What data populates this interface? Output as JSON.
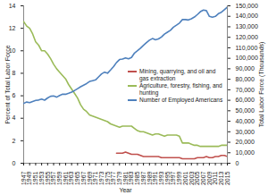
{
  "chart_data": {
    "type": "line",
    "x_label": "Year",
    "y_label": "Percent of Total Labor Force",
    "y2_label": "Total Labor Force (Thousands)",
    "x": [
      1947,
      1948,
      1949,
      1950,
      1951,
      1952,
      1953,
      1954,
      1955,
      1956,
      1957,
      1958,
      1959,
      1960,
      1961,
      1962,
      1963,
      1964,
      1965,
      1966,
      1967,
      1968,
      1969,
      1970,
      1971,
      1972,
      1973,
      1974,
      1975,
      1976,
      1977,
      1978,
      1979,
      1980,
      1981,
      1982,
      1983,
      1984,
      1985,
      1986,
      1987,
      1988,
      1989,
      1990,
      1991,
      1992,
      1993,
      1994,
      1995,
      1996,
      1997,
      1998,
      1999,
      2000,
      2001,
      2002,
      2003,
      2004,
      2005,
      2006,
      2007,
      2008,
      2009,
      2010,
      2011,
      2012,
      2013,
      2014,
      2015
    ],
    "xlim": [
      1947,
      2015
    ],
    "xticks": [
      1947,
      1949,
      1951,
      1953,
      1955,
      1957,
      1959,
      1961,
      1963,
      1965,
      1967,
      1969,
      1971,
      1973,
      1975,
      1977,
      1979,
      1981,
      1983,
      1985,
      1987,
      1989,
      1991,
      1993,
      1995,
      1997,
      1999,
      2001,
      2003,
      2005,
      2007,
      2009,
      2011,
      2013,
      2015
    ],
    "ylim": [
      0,
      14
    ],
    "yticks": [
      0,
      2,
      4,
      6,
      8,
      10,
      12,
      14
    ],
    "y2lim": [
      0,
      150000
    ],
    "y2ticks": [
      0,
      {
        "value": 10000,
        "label": "10,000"
      },
      {
        "value": 20000,
        "label": "20,000"
      },
      {
        "value": 30000,
        "label": "30,000"
      },
      {
        "value": 40000,
        "label": "40,000"
      },
      {
        "value": 50000,
        "label": "50,000"
      },
      {
        "value": 60000,
        "label": "60,000"
      },
      {
        "value": 70000,
        "label": "70,000"
      },
      {
        "value": 80000,
        "label": "80,000"
      },
      {
        "value": 90000,
        "label": "90,000"
      },
      {
        "value": 100000,
        "label": "100,000"
      },
      {
        "value": 110000,
        "label": "110,000"
      },
      {
        "value": 120000,
        "label": "120,000"
      },
      {
        "value": 130000,
        "label": "130,000"
      },
      {
        "value": 140000,
        "label": "140,000"
      },
      {
        "value": 150000,
        "label": "150,000"
      }
    ],
    "grid": false,
    "legend": "right",
    "series": [
      {
        "name": "Mining, quarrying, and oil and gas extraction",
        "color": "#c0504d",
        "values": [
          null,
          null,
          null,
          null,
          null,
          null,
          null,
          null,
          null,
          null,
          null,
          null,
          null,
          null,
          null,
          null,
          null,
          null,
          null,
          null,
          null,
          null,
          null,
          null,
          null,
          null,
          null,
          null,
          null,
          null,
          null,
          0.9,
          0.9,
          0.9,
          1.0,
          0.9,
          0.8,
          0.8,
          0.8,
          0.7,
          0.6,
          0.6,
          0.6,
          0.6,
          0.6,
          0.6,
          0.5,
          0.5,
          0.5,
          0.5,
          0.5,
          0.5,
          0.5,
          0.4,
          0.4,
          0.4,
          0.4,
          0.4,
          0.5,
          0.5,
          0.5,
          0.6,
          0.5,
          0.5,
          0.6,
          0.6,
          0.7,
          0.7,
          0.6
        ]
      },
      {
        "name": "Agriculture, forestry, fishing, and hunting",
        "color": "#9bbb59",
        "values": [
          12.6,
          12.2,
          12.0,
          11.5,
          10.8,
          10.5,
          10.0,
          10.0,
          9.7,
          9.3,
          8.8,
          8.4,
          8.1,
          7.8,
          7.5,
          7.0,
          6.6,
          6.2,
          5.8,
          5.2,
          4.8,
          4.6,
          4.3,
          4.2,
          4.1,
          4.0,
          3.9,
          3.8,
          3.7,
          3.5,
          3.4,
          3.3,
          3.2,
          3.3,
          3.3,
          3.3,
          3.3,
          3.1,
          2.9,
          2.8,
          2.8,
          2.7,
          2.6,
          2.5,
          2.6,
          2.6,
          2.5,
          2.4,
          2.5,
          2.5,
          2.5,
          2.5,
          2.4,
          1.8,
          1.8,
          1.8,
          1.7,
          1.6,
          1.6,
          1.5,
          1.5,
          1.5,
          1.5,
          1.5,
          1.5,
          1.5,
          1.6,
          1.6,
          1.6
        ]
      },
      {
        "name": "Number of Employed Americans",
        "color": "#4f81bd",
        "axis": "y2",
        "values": [
          57000,
          58300,
          57700,
          58900,
          59900,
          60200,
          61200,
          60100,
          62200,
          63800,
          64100,
          63000,
          64600,
          65800,
          65700,
          66700,
          67800,
          69300,
          71100,
          72900,
          74400,
          75900,
          77900,
          78700,
          79400,
          82200,
          85100,
          86800,
          85800,
          88800,
          92000,
          96000,
          98800,
          99300,
          100400,
          99500,
          100800,
          105000,
          107200,
          109600,
          112400,
          115000,
          117300,
          118800,
          117700,
          118500,
          120300,
          123100,
          124900,
          126700,
          129600,
          131500,
          133500,
          136900,
          136900,
          136500,
          137700,
          139300,
          141700,
          144400,
          146000,
          145400,
          139900,
          139100,
          139900,
          142500,
          143900,
          146300,
          148800
        ]
      }
    ]
  }
}
